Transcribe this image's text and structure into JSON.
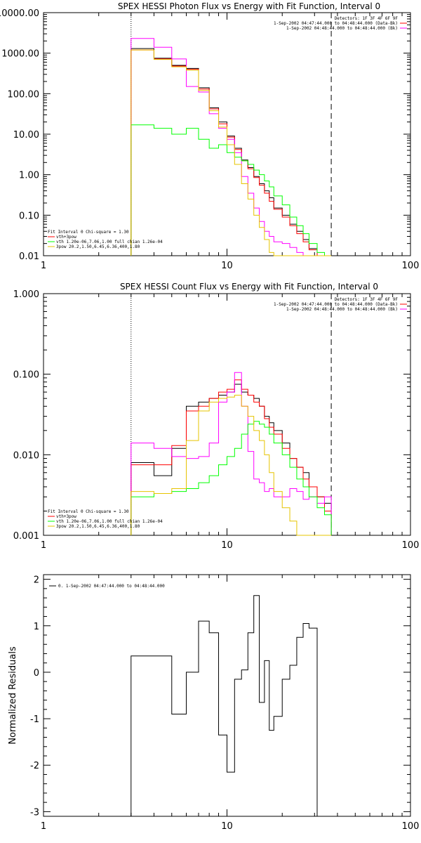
{
  "colors": {
    "observed": "#000000",
    "total": "#ff0000",
    "magenta": "#ff00ff",
    "green": "#00ff00",
    "yellow": "#e6c400"
  },
  "chart_data": [
    {
      "type": "line",
      "title": "SPEX HESSI Photon Flux vs Energy with Fit Function, Interval 0",
      "xscale": "log",
      "yscale": "log",
      "xlim": [
        1,
        100
      ],
      "ylim": [
        0.01,
        10000
      ],
      "xticks": [
        "1",
        "10",
        "100"
      ],
      "yticks": [
        "0.01",
        "0.10",
        "1.00",
        "10.00",
        "100.00",
        "1000.00",
        "10000.00"
      ],
      "xlabel": "",
      "ylabel": "",
      "legend_top_right": [
        "Detectors: 1F 3F 4F 6F 9F",
        "1-Sep-2002 04:47:44.000 to 04:48:44.000 (Data-Bk)",
        "1-Sep-2002 04:48:44.000 to 04:48:44.000 (Bk)"
      ],
      "legend_bottom_left": [
        "Fit Interval 0   Chi-square = 1.30",
        "vth+3pow",
        "vth 1.20e-06,7.06,1.00  full chian 1.26e-04",
        "3pow 20.2,1.50,6.45,6.36,400,1.80"
      ],
      "markers": {
        "low": 3,
        "high": 37
      },
      "bin_edges": [
        3,
        4,
        5,
        6,
        7,
        8,
        9,
        10,
        11,
        12,
        13,
        14,
        15,
        16,
        17,
        18,
        20,
        22,
        24,
        26,
        28,
        31,
        34,
        37
      ],
      "series": [
        {
          "key": "observed",
          "values": [
            1300,
            750,
            500,
            420,
            140,
            45,
            20,
            9,
            4.5,
            2.3,
            1.5,
            0.9,
            0.6,
            0.4,
            0.27,
            0.15,
            0.1,
            0.06,
            0.04,
            0.025,
            0.015,
            0.01,
            0.01
          ]
        },
        {
          "key": "total",
          "values": [
            1200,
            720,
            480,
            400,
            130,
            42,
            18,
            8.5,
            4.2,
            2.2,
            1.4,
            0.85,
            0.55,
            0.35,
            0.22,
            0.14,
            0.09,
            0.055,
            0.035,
            0.022,
            0.014,
            0.01,
            0.01
          ]
        },
        {
          "key": "magenta",
          "values": [
            2300,
            1400,
            720,
            150,
            110,
            32,
            14,
            7.5,
            3.5,
            0.9,
            0.35,
            0.15,
            0.07,
            0.04,
            0.03,
            0.022,
            0.02,
            0.016,
            0.012,
            0.01,
            0.01,
            0.01,
            0.01
          ]
        },
        {
          "key": "green",
          "values": [
            17,
            14,
            10,
            14,
            7.5,
            4.5,
            5.5,
            3.5,
            2.7,
            2.2,
            1.8,
            1.3,
            1,
            0.7,
            0.5,
            0.3,
            0.18,
            0.09,
            0.055,
            0.035,
            0.02,
            0.012,
            0.01
          ]
        },
        {
          "key": "yellow",
          "values": [
            1200,
            700,
            460,
            380,
            120,
            38,
            15,
            5.5,
            1.8,
            0.6,
            0.25,
            0.1,
            0.05,
            0.025,
            0.012,
            0.01,
            0.01,
            0.01,
            0.01,
            0.01,
            0.01,
            0.01,
            0.01
          ]
        }
      ]
    },
    {
      "type": "line",
      "title": "SPEX HESSI Count Flux vs Energy with Fit Function, Interval 0",
      "xscale": "log",
      "yscale": "log",
      "xlim": [
        1,
        100
      ],
      "ylim": [
        0.001,
        1
      ],
      "xticks": [
        "1",
        "10",
        "100"
      ],
      "yticks": [
        "0.001",
        "0.010",
        "0.100",
        "1.000"
      ],
      "xlabel": "",
      "ylabel": "",
      "legend_top_right": [
        "Detectors: 1F 3F 4F 6F 9F",
        "1-Sep-2002 04:47:44.000 to 04:48:44.000 (Data-Bk)",
        "1-Sep-2002 04:48:44.000 to 04:48:44.000 (Bk)"
      ],
      "legend_bottom_left": [
        "Fit Interval 0   Chi-square = 1.30",
        "vth+3pow",
        "vth 1.20e-06,7.06,1.00  full chian 1.26e-04",
        "3pow 20.2,1.50,6.45,6.36,400,1.80"
      ],
      "markers": {
        "low": 3,
        "high": 37
      },
      "bin_edges": [
        3,
        4,
        5,
        6,
        7,
        8,
        9,
        10,
        11,
        12,
        13,
        14,
        15,
        16,
        17,
        18,
        20,
        22,
        24,
        26,
        28,
        31,
        34,
        37
      ],
      "series": [
        {
          "key": "observed",
          "values": [
            0.008,
            0.0055,
            0.012,
            0.04,
            0.045,
            0.05,
            0.055,
            0.06,
            0.075,
            0.06,
            0.055,
            0.05,
            0.04,
            0.03,
            0.025,
            0.02,
            0.014,
            0.009,
            0.007,
            0.006,
            0.004,
            0.003,
            0.0025
          ]
        },
        {
          "key": "total",
          "values": [
            0.0075,
            0.0075,
            0.013,
            0.035,
            0.04,
            0.05,
            0.06,
            0.065,
            0.085,
            0.065,
            0.055,
            0.045,
            0.04,
            0.028,
            0.022,
            0.018,
            0.012,
            0.009,
            0.007,
            0.005,
            0.004,
            0.003,
            0.002
          ]
        },
        {
          "key": "magenta",
          "values": [
            0.014,
            0.012,
            0.0095,
            0.009,
            0.0095,
            0.014,
            0.045,
            0.06,
            0.105,
            0.04,
            0.011,
            0.005,
            0.0045,
            0.0035,
            0.0038,
            0.003,
            0.003,
            0.0038,
            0.0035,
            0.0028,
            0.003,
            0.0025,
            0.003
          ]
        },
        {
          "key": "green",
          "values": [
            0.003,
            0.0033,
            0.0035,
            0.0038,
            0.0045,
            0.0055,
            0.0075,
            0.0095,
            0.012,
            0.018,
            0.024,
            0.026,
            0.024,
            0.022,
            0.018,
            0.014,
            0.01,
            0.007,
            0.005,
            0.004,
            0.003,
            0.0022,
            0.0018
          ]
        },
        {
          "key": "yellow",
          "values": [
            0.0035,
            0.0033,
            0.0038,
            0.015,
            0.035,
            0.045,
            0.05,
            0.052,
            0.055,
            0.04,
            0.03,
            0.02,
            0.015,
            0.01,
            0.006,
            0.0035,
            0.0022,
            0.0015,
            0.001,
            0.001,
            0.001,
            0.001,
            0.001
          ]
        }
      ]
    },
    {
      "type": "line",
      "title": "",
      "xscale": "log",
      "yscale": "linear",
      "xlim": [
        1,
        100
      ],
      "ylim": [
        -3.1,
        2.1
      ],
      "xticks": [
        "1",
        "10",
        "100"
      ],
      "yticks": [
        "-3",
        "-2",
        "-1",
        "0",
        "1",
        "2"
      ],
      "xlabel": "",
      "ylabel": "Normalized Residuals",
      "legend_top_left": [
        "0.  1-Sep-2002 04:47:44.000 to 04:48:44.000"
      ],
      "bin_edges": [
        3,
        4,
        5,
        6,
        7,
        8,
        9,
        10,
        11,
        12,
        13,
        14,
        15,
        16,
        17,
        18,
        20,
        22,
        24,
        26,
        28,
        31,
        34,
        37
      ],
      "series": [
        {
          "key": "observed",
          "values": [
            0.35,
            0.35,
            -0.9,
            0.0,
            1.1,
            0.85,
            -1.35,
            -2.15,
            -0.15,
            0.05,
            0.85,
            1.65,
            -0.65,
            0.25,
            -1.25,
            -0.95,
            -0.15,
            0.15,
            0.75,
            1.05,
            0.95,
            -3.1,
            -3.1
          ]
        }
      ]
    }
  ]
}
